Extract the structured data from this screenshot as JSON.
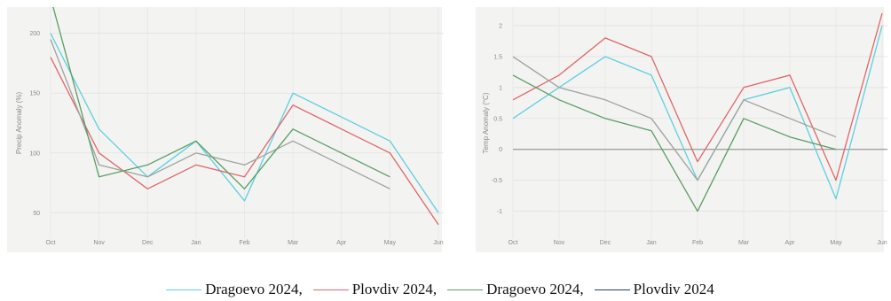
{
  "colors": {
    "cyan": "#5ecfe0",
    "red": "#e06666",
    "green": "#5a9e62",
    "gray": "#9da39c",
    "navy": "#1f3f6e",
    "zero_line": "#888888"
  },
  "chart_data": [
    {
      "type": "line",
      "ylabel": "Precip Anomaly (%)",
      "categories": [
        "Oct",
        "Nov",
        "Dec",
        "Jan",
        "Feb",
        "Mar",
        "Apr",
        "May",
        "Jun"
      ],
      "yticks": [
        50,
        100,
        150,
        200
      ],
      "ylim": [
        28,
        222
      ],
      "grid": true,
      "series": [
        {
          "color_key": "cyan",
          "values": [
            200,
            120,
            80,
            110,
            60,
            150,
            130,
            110,
            50
          ]
        },
        {
          "color_key": "red",
          "values": [
            180,
            100,
            70,
            90,
            80,
            140,
            120,
            100,
            40
          ]
        },
        {
          "color_key": "gray",
          "values": [
            195,
            90,
            80,
            100,
            90,
            110,
            90,
            70,
            null
          ]
        },
        {
          "color_key": "green",
          "values": [
            230,
            80,
            90,
            110,
            70,
            120,
            100,
            80,
            null
          ]
        }
      ]
    },
    {
      "type": "line",
      "ylabel": "Temp Anomaly (°C)",
      "categories": [
        "Oct",
        "Nov",
        "Dec",
        "Jan",
        "Feb",
        "Mar",
        "Apr",
        "May",
        "Jun"
      ],
      "yticks": [
        -1,
        -0.5,
        0,
        0.5,
        1,
        1.5,
        2
      ],
      "ylim": [
        -1.45,
        2.3
      ],
      "grid": true,
      "zero_line": true,
      "series": [
        {
          "color_key": "cyan",
          "values": [
            0.5,
            1.0,
            1.5,
            1.2,
            -0.5,
            0.8,
            1.0,
            -0.8,
            2.0
          ]
        },
        {
          "color_key": "red",
          "values": [
            0.8,
            1.2,
            1.8,
            1.5,
            -0.2,
            1.0,
            1.2,
            -0.5,
            2.2
          ]
        },
        {
          "color_key": "gray",
          "values": [
            1.5,
            1.0,
            0.8,
            0.5,
            -0.5,
            0.8,
            0.5,
            0.2,
            null
          ]
        },
        {
          "color_key": "green",
          "values": [
            1.2,
            0.8,
            0.5,
            0.3,
            -1.0,
            0.5,
            0.2,
            0.0,
            null
          ]
        }
      ]
    }
  ],
  "legend": [
    {
      "label": "Dragoevo 2024,",
      "color_key": "cyan"
    },
    {
      "label": "Plovdiv 2024,",
      "color_key": "red"
    },
    {
      "label": "Dragoevo 2024,",
      "color_key": "green"
    },
    {
      "label": "Plovdiv 2024",
      "color_key": "navy"
    }
  ]
}
